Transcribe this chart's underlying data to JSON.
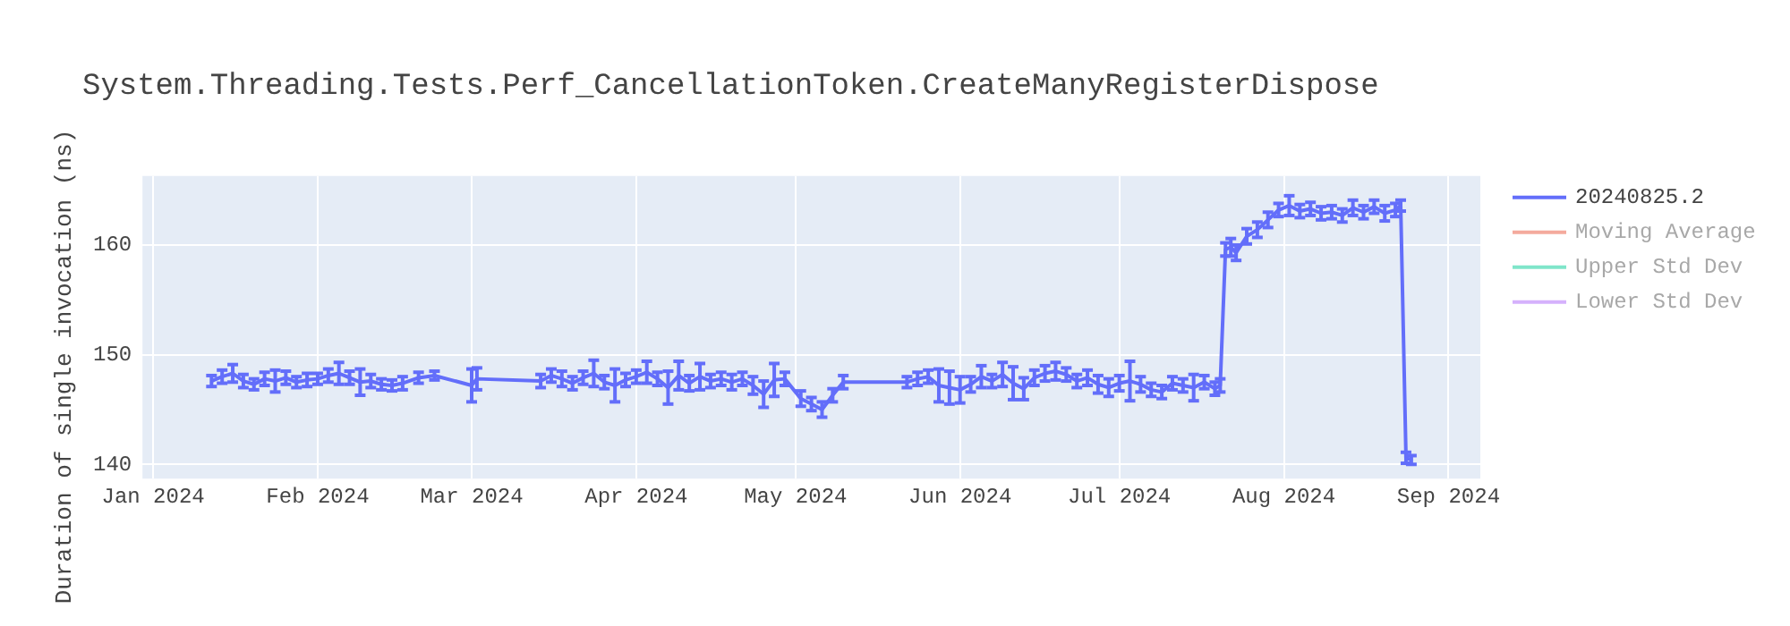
{
  "chart_data": {
    "type": "line",
    "title": "System.Threading.Tests.Perf_CancellationToken.CreateManyRegisterDispose",
    "ylabel": "Duration of single invocation (ns)",
    "x": [
      "2024-01-12",
      "2024-01-14",
      "2024-01-16",
      "2024-01-18",
      "2024-01-20",
      "2024-01-22",
      "2024-01-24",
      "2024-01-26",
      "2024-01-28",
      "2024-01-30",
      "2024-02-01",
      "2024-02-03",
      "2024-02-05",
      "2024-02-07",
      "2024-02-09",
      "2024-02-11",
      "2024-02-13",
      "2024-02-15",
      "2024-02-17",
      "2024-02-20",
      "2024-02-23",
      "2024-03-01",
      "2024-03-02",
      "2024-03-14",
      "2024-03-16",
      "2024-03-18",
      "2024-03-20",
      "2024-03-22",
      "2024-03-24",
      "2024-03-26",
      "2024-03-28",
      "2024-03-30",
      "2024-04-01",
      "2024-04-03",
      "2024-04-05",
      "2024-04-07",
      "2024-04-09",
      "2024-04-11",
      "2024-04-13",
      "2024-04-15",
      "2024-04-17",
      "2024-04-19",
      "2024-04-21",
      "2024-04-23",
      "2024-04-25",
      "2024-04-27",
      "2024-04-29",
      "2024-05-02",
      "2024-05-04",
      "2024-05-06",
      "2024-05-08",
      "2024-05-10",
      "2024-05-22",
      "2024-05-24",
      "2024-05-26",
      "2024-05-28",
      "2024-05-30",
      "2024-06-01",
      "2024-06-03",
      "2024-06-05",
      "2024-06-07",
      "2024-06-09",
      "2024-06-11",
      "2024-06-13",
      "2024-06-15",
      "2024-06-17",
      "2024-06-19",
      "2024-06-21",
      "2024-06-23",
      "2024-06-25",
      "2024-06-27",
      "2024-06-29",
      "2024-07-01",
      "2024-07-03",
      "2024-07-05",
      "2024-07-07",
      "2024-07-09",
      "2024-07-11",
      "2024-07-13",
      "2024-07-15",
      "2024-07-17",
      "2024-07-19",
      "2024-07-20",
      "2024-07-21",
      "2024-07-22",
      "2024-07-23",
      "2024-07-25",
      "2024-07-27",
      "2024-07-29",
      "2024-07-31",
      "2024-08-02",
      "2024-08-04",
      "2024-08-06",
      "2024-08-08",
      "2024-08-10",
      "2024-08-12",
      "2024-08-14",
      "2024-08-16",
      "2024-08-18",
      "2024-08-20",
      "2024-08-22",
      "2024-08-23",
      "2024-08-24",
      "2024-08-25"
    ],
    "series": [
      {
        "name": "20240825.2",
        "color": "#636efa",
        "values": [
          147.6,
          148.0,
          148.3,
          147.6,
          147.3,
          147.8,
          147.6,
          147.9,
          147.5,
          147.7,
          147.8,
          148.1,
          148.3,
          147.9,
          147.5,
          147.6,
          147.3,
          147.2,
          147.4,
          147.9,
          148.1,
          147.2,
          147.8,
          147.6,
          148.1,
          147.8,
          147.4,
          147.9,
          148.3,
          147.5,
          147.2,
          147.7,
          148.0,
          148.4,
          147.8,
          147.0,
          148.1,
          147.4,
          148.0,
          147.6,
          147.8,
          147.5,
          147.8,
          147.2,
          146.4,
          147.7,
          147.8,
          146.0,
          145.5,
          145.0,
          146.3,
          147.5,
          147.5,
          147.8,
          148.0,
          147.2,
          147.0,
          146.8,
          147.3,
          148.0,
          147.6,
          148.2,
          147.4,
          146.9,
          147.9,
          148.3,
          148.5,
          148.2,
          147.6,
          147.9,
          147.3,
          147.0,
          147.4,
          147.6,
          147.3,
          146.8,
          146.6,
          147.4,
          147.2,
          147.0,
          147.5,
          146.9,
          147.2,
          159.6,
          159.8,
          159.3,
          160.8,
          161.4,
          162.3,
          163.2,
          163.6,
          163.1,
          163.3,
          162.9,
          163.0,
          162.7,
          163.4,
          163.0,
          163.5,
          162.9,
          163.2,
          163.6,
          140.6,
          140.4
        ],
        "errors": [
          0.5,
          0.6,
          0.8,
          0.6,
          0.5,
          0.6,
          1.0,
          0.6,
          0.5,
          0.6,
          0.5,
          0.6,
          1.0,
          0.6,
          1.2,
          0.6,
          0.5,
          0.5,
          0.6,
          0.5,
          0.4,
          1.5,
          1.0,
          0.6,
          0.6,
          0.7,
          0.6,
          0.6,
          1.2,
          0.6,
          1.5,
          0.6,
          0.6,
          1.0,
          0.6,
          1.5,
          1.3,
          0.7,
          1.2,
          0.6,
          0.6,
          0.7,
          0.6,
          0.8,
          1.2,
          1.5,
          0.6,
          0.7,
          0.6,
          0.7,
          0.6,
          0.6,
          0.5,
          0.6,
          0.6,
          1.5,
          1.5,
          1.2,
          0.7,
          1.0,
          0.6,
          1.1,
          1.5,
          1.0,
          0.7,
          0.7,
          0.8,
          0.6,
          0.6,
          0.7,
          0.8,
          0.8,
          0.7,
          1.8,
          0.7,
          0.6,
          0.6,
          0.6,
          0.6,
          1.2,
          0.6,
          0.6,
          0.6,
          0.6,
          0.8,
          0.7,
          0.7,
          0.7,
          0.7,
          0.6,
          0.9,
          0.6,
          0.6,
          0.6,
          0.6,
          0.6,
          0.7,
          0.6,
          0.6,
          0.7,
          0.6,
          0.5,
          0.5,
          0.4
        ]
      },
      {
        "name": "Moving Average",
        "color": "#f4aa9d",
        "values": [
          null,
          null,
          null,
          null,
          null,
          null,
          null,
          null,
          null,
          null,
          null,
          null,
          null,
          null,
          null,
          null,
          null,
          null,
          null,
          null,
          null,
          null,
          null,
          null,
          null,
          null,
          null,
          null,
          null,
          null,
          null,
          null,
          null,
          null,
          null,
          null,
          null,
          null,
          null,
          null,
          null,
          null,
          null,
          null,
          null,
          null,
          null,
          null,
          null,
          null,
          null,
          null,
          null,
          null,
          null,
          null,
          null,
          null,
          null,
          null,
          null,
          null,
          null,
          null,
          null,
          null,
          null,
          null,
          null,
          null,
          null,
          null,
          null,
          null,
          null,
          null,
          null,
          null,
          null,
          null,
          null,
          null,
          null,
          null,
          null,
          null,
          null,
          null,
          null,
          null,
          null,
          null,
          null,
          null,
          null,
          null,
          null,
          null,
          null,
          null,
          null,
          null,
          null,
          null
        ]
      },
      {
        "name": "Upper Std Dev",
        "color": "#7fe5ca",
        "values": [
          null,
          null,
          null,
          null,
          null,
          null,
          null,
          null,
          null,
          null,
          null,
          null,
          null,
          null,
          null,
          null,
          null,
          null,
          null,
          null,
          null,
          null,
          null,
          null,
          null,
          null,
          null,
          null,
          null,
          null,
          null,
          null,
          null,
          null,
          null,
          null,
          null,
          null,
          null,
          null,
          null,
          null,
          null,
          null,
          null,
          null,
          null,
          null,
          null,
          null,
          null,
          null,
          null,
          null,
          null,
          null,
          null,
          null,
          null,
          null,
          null,
          null,
          null,
          null,
          null,
          null,
          null,
          null,
          null,
          null,
          null,
          null,
          null,
          null,
          null,
          null,
          null,
          null,
          null,
          null,
          null,
          null,
          null,
          null,
          null,
          null,
          null,
          null,
          null,
          null,
          null,
          null,
          null,
          null,
          null,
          null,
          null,
          null,
          null,
          null,
          null,
          null,
          null,
          null
        ]
      },
      {
        "name": "Lower Std Dev",
        "color": "#d5b1fc",
        "values": [
          null,
          null,
          null,
          null,
          null,
          null,
          null,
          null,
          null,
          null,
          null,
          null,
          null,
          null,
          null,
          null,
          null,
          null,
          null,
          null,
          null,
          null,
          null,
          null,
          null,
          null,
          null,
          null,
          null,
          null,
          null,
          null,
          null,
          null,
          null,
          null,
          null,
          null,
          null,
          null,
          null,
          null,
          null,
          null,
          null,
          null,
          null,
          null,
          null,
          null,
          null,
          null,
          null,
          null,
          null,
          null,
          null,
          null,
          null,
          null,
          null,
          null,
          null,
          null,
          null,
          null,
          null,
          null,
          null,
          null,
          null,
          null,
          null,
          null,
          null,
          null,
          null,
          null,
          null,
          null,
          null,
          null,
          null,
          null,
          null,
          null,
          null,
          null,
          null,
          null,
          null,
          null,
          null,
          null,
          null,
          null,
          null,
          null,
          null,
          null,
          null,
          null,
          null,
          null
        ]
      }
    ],
    "xlim": [
      "2023-12-30",
      "2024-09-07"
    ],
    "xticks": [
      {
        "value": "2024-01-01",
        "label": "Jan 2024"
      },
      {
        "value": "2024-02-01",
        "label": "Feb 2024"
      },
      {
        "value": "2024-03-01",
        "label": "Mar 2024"
      },
      {
        "value": "2024-04-01",
        "label": "Apr 2024"
      },
      {
        "value": "2024-05-01",
        "label": "May 2024"
      },
      {
        "value": "2024-06-01",
        "label": "Jun 2024"
      },
      {
        "value": "2024-07-01",
        "label": "Jul 2024"
      },
      {
        "value": "2024-08-01",
        "label": "Aug 2024"
      },
      {
        "value": "2024-09-01",
        "label": "Sep 2024"
      }
    ],
    "ylim": [
      138.7,
      166.3
    ],
    "yticks": [
      140,
      150,
      160
    ],
    "grid": true,
    "legend": "top right",
    "line_style": "solid"
  }
}
